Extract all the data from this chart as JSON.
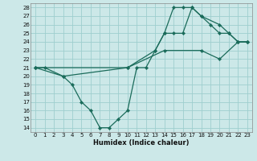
{
  "xlabel": "Humidex (Indice chaleur)",
  "bg_color": "#cce8e8",
  "grid_color": "#9ecece",
  "line_color": "#1a6b5a",
  "xlim": [
    -0.5,
    23.5
  ],
  "ylim": [
    13.5,
    28.5
  ],
  "xticks": [
    0,
    1,
    2,
    3,
    4,
    5,
    6,
    7,
    8,
    9,
    10,
    11,
    12,
    13,
    14,
    15,
    16,
    17,
    18,
    19,
    20,
    21,
    22,
    23
  ],
  "yticks": [
    14,
    15,
    16,
    17,
    18,
    19,
    20,
    21,
    22,
    23,
    24,
    25,
    26,
    27,
    28
  ],
  "series": [
    {
      "x": [
        0,
        1,
        3,
        4,
        5,
        6,
        7,
        8,
        9,
        10,
        11,
        12,
        13,
        14,
        15,
        16,
        17,
        18,
        19,
        20,
        21,
        22,
        23
      ],
      "y": [
        21,
        21,
        20,
        19,
        17,
        16,
        14,
        14,
        15,
        16,
        21,
        21,
        23,
        25,
        28,
        28,
        28,
        27,
        26,
        25,
        25,
        24,
        24
      ]
    },
    {
      "x": [
        0,
        3,
        10,
        13,
        14,
        15,
        16,
        17,
        18,
        20,
        21,
        22,
        23
      ],
      "y": [
        21,
        20,
        21,
        23,
        25,
        25,
        25,
        28,
        27,
        26,
        25,
        24,
        24
      ]
    },
    {
      "x": [
        0,
        10,
        14,
        18,
        20,
        22,
        23
      ],
      "y": [
        21,
        21,
        23,
        23,
        22,
        24,
        24
      ]
    }
  ]
}
